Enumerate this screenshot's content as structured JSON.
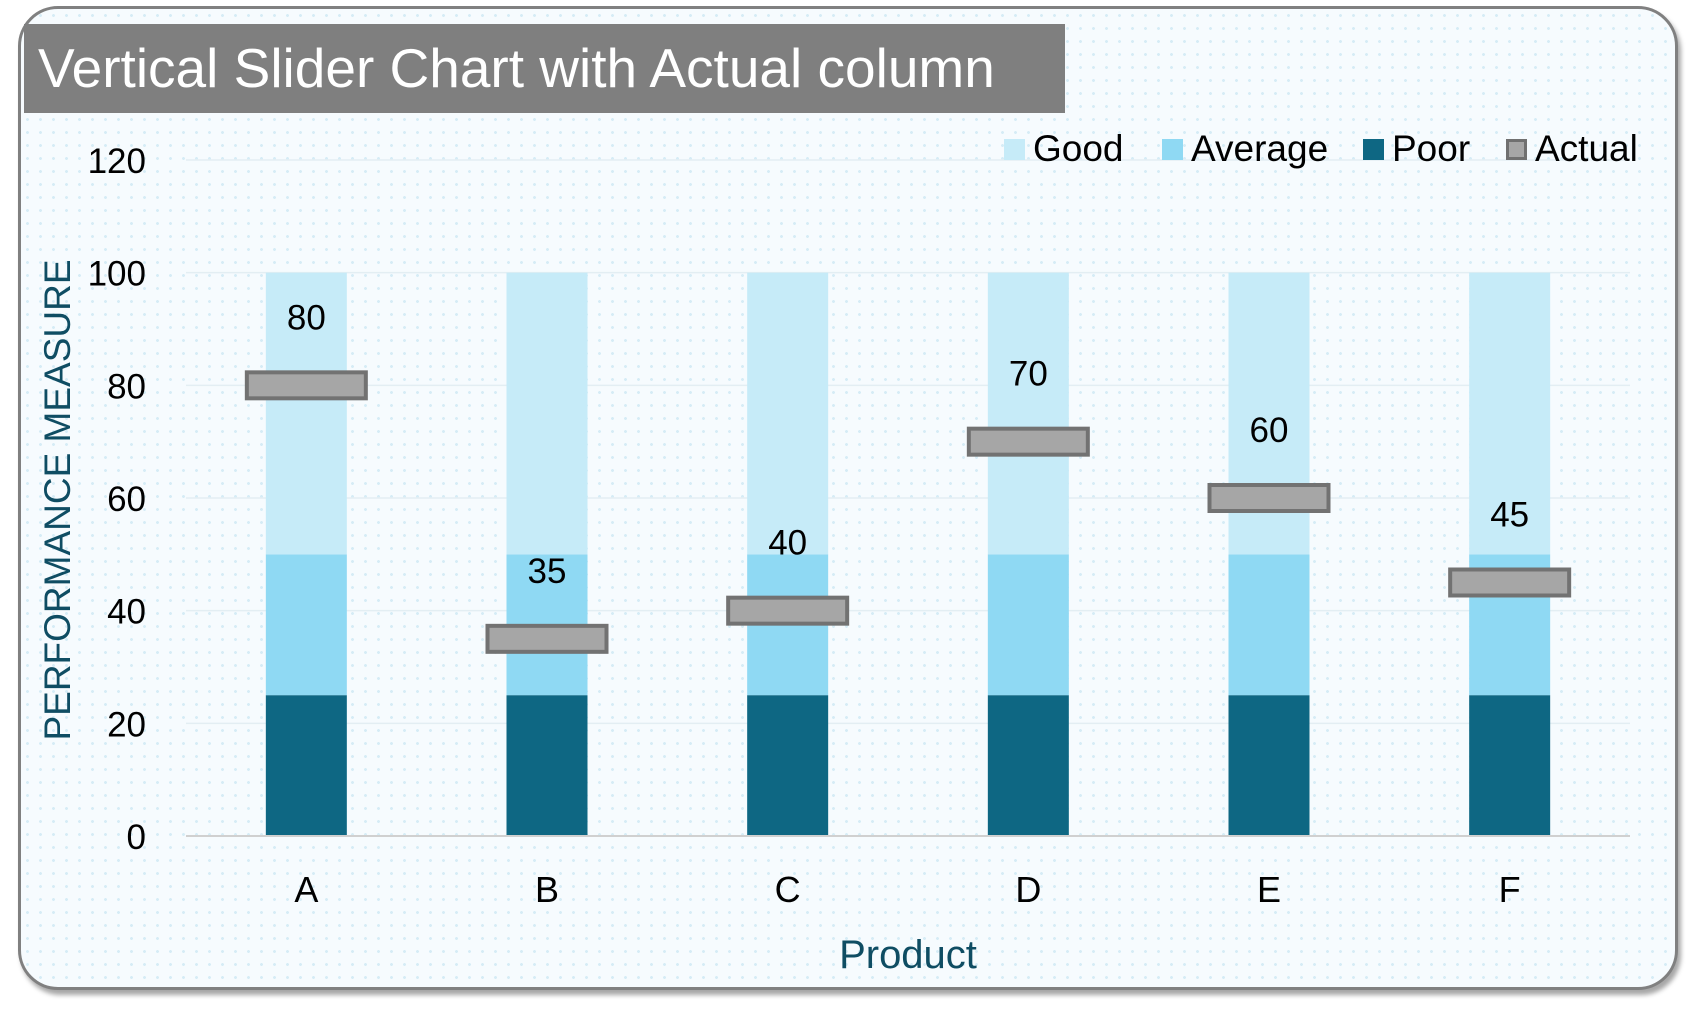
{
  "chart_data": {
    "type": "bar",
    "title": "Vertical Slider Chart with Actual column",
    "xlabel": "Product",
    "ylabel": "PERFORMANCE MEASURE",
    "ylim": [
      0,
      120
    ],
    "yticks": [
      0,
      20,
      40,
      60,
      80,
      100,
      120
    ],
    "categories": [
      "A",
      "B",
      "C",
      "D",
      "E",
      "F"
    ],
    "series": [
      {
        "name": "Poor",
        "values": [
          25,
          25,
          25,
          25,
          25,
          25
        ],
        "color": "#0e6783"
      },
      {
        "name": "Average",
        "values": [
          25,
          25,
          25,
          25,
          25,
          25
        ],
        "color": "#8fd9f3"
      },
      {
        "name": "Good",
        "values": [
          50,
          50,
          50,
          50,
          50,
          50
        ],
        "color": "#c6ebf8"
      },
      {
        "name": "Actual",
        "values": [
          80,
          35,
          40,
          70,
          60,
          45
        ],
        "color": "#a6a6a6"
      }
    ],
    "legend_position": "top-right",
    "grid": true
  },
  "legend": {
    "good": "Good",
    "average": "Average",
    "poor": "Poor",
    "actual": "Actual"
  }
}
